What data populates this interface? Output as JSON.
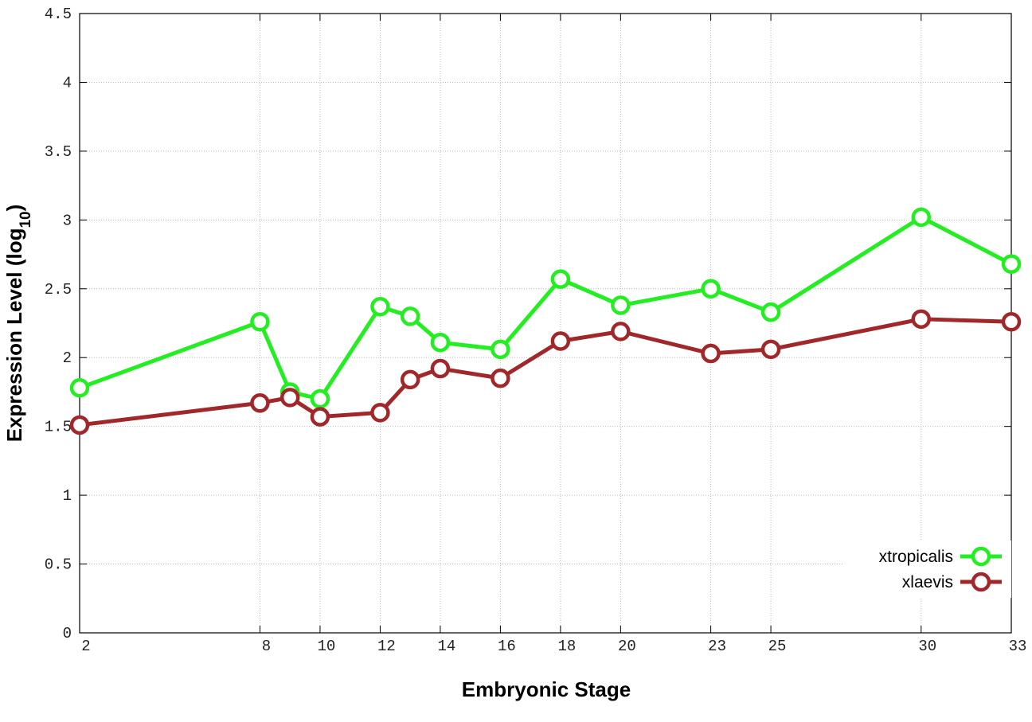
{
  "chart_data": {
    "type": "line",
    "x_label": "Embryonic Stage",
    "y_label": "Expression Level (log10)",
    "x": [
      2,
      8,
      9,
      10,
      12,
      13,
      14,
      16,
      18,
      20,
      23,
      25,
      30,
      33
    ],
    "series": [
      {
        "name": "xtropicalis",
        "color": "#22ee22",
        "values": [
          1.78,
          2.26,
          1.75,
          1.7,
          2.37,
          2.3,
          2.11,
          2.06,
          2.57,
          2.38,
          2.5,
          2.33,
          3.02,
          2.68
        ]
      },
      {
        "name": "xlaevis",
        "color": "#a0282a",
        "values": [
          1.51,
          1.67,
          1.71,
          1.57,
          1.6,
          1.84,
          1.92,
          1.85,
          2.12,
          2.19,
          2.03,
          2.06,
          2.28,
          2.26
        ]
      }
    ],
    "xlim": [
      2,
      33
    ],
    "xticks": [
      2,
      8,
      10,
      12,
      14,
      16,
      18,
      20,
      23,
      25,
      30,
      33
    ],
    "ylim": [
      0,
      4.5
    ],
    "yticks": [
      0,
      0.5,
      1,
      1.5,
      2,
      2.5,
      3,
      3.5,
      4,
      4.5
    ],
    "grid": true,
    "legend": "bottom-right"
  }
}
